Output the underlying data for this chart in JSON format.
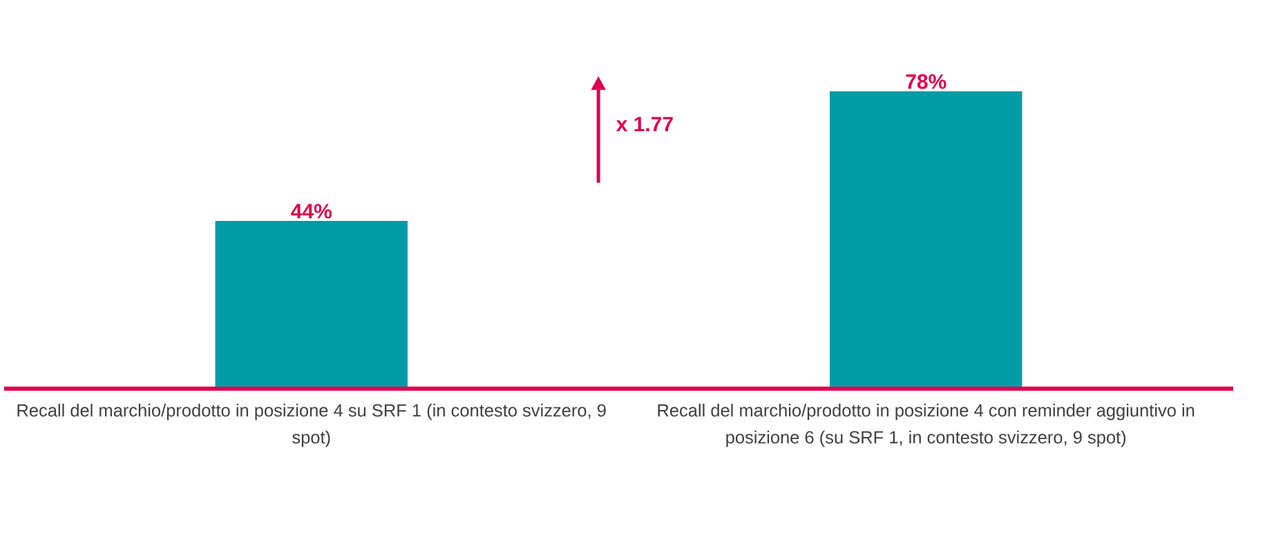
{
  "chart_data": {
    "type": "bar",
    "categories": [
      "Recall del marchio/prodotto in posizione 4 su SRF 1 (in contesto svizzero, 9 spot)",
      "Recall del marchio/prodotto in posizione 4 con reminder aggiuntivo in posizione 6 (su SRF 1, in contesto svizzero, 9 spot)"
    ],
    "values": [
      44,
      78
    ],
    "value_labels": [
      "44%",
      "78%"
    ],
    "color": "#009ca6",
    "annotations": [
      "x 1.77"
    ]
  }
}
